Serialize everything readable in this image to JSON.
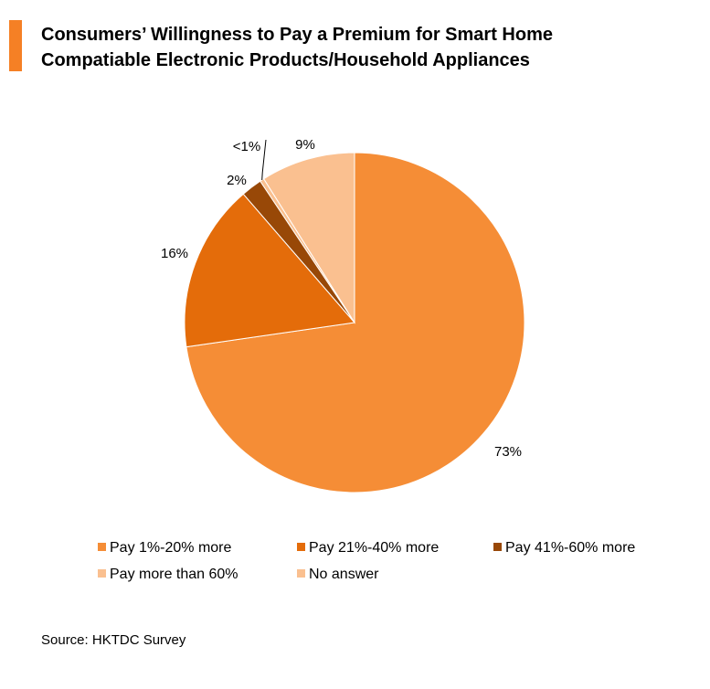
{
  "title": {
    "line1": "Consumers’ Willingness to Pay a Premium for Smart Home",
    "line2": "Compatiable Electronic Products/Household Appliances",
    "accent_color": "#F58025"
  },
  "chart_data": {
    "type": "pie",
    "title": "Consumers’ Willingness to Pay a Premium for Smart Home Compatiable Electronic Products/Household Appliances",
    "start_angle_deg": 0,
    "direction": "clockwise",
    "slices": [
      {
        "name": "Pay 1%-20% more",
        "value": 73,
        "label": "73%",
        "color": "#F58D36"
      },
      {
        "name": "Pay 21%-40% more",
        "value": 16,
        "label": "16%",
        "color": "#E46C0A"
      },
      {
        "name": "Pay 41%-60% more",
        "value": 2,
        "label": "2%",
        "color": "#984807"
      },
      {
        "name": "Pay more than 60%",
        "value": 0.4,
        "label": "<1%",
        "color": "#FAC090"
      },
      {
        "name": "No answer",
        "value": 9,
        "label": "9%",
        "color": "#FAC090"
      }
    ],
    "legend_position": "bottom"
  },
  "legend": [
    {
      "label": "Pay 1%-20% more",
      "color": "#F58D36"
    },
    {
      "label": "Pay 21%-40% more",
      "color": "#E46C0A"
    },
    {
      "label": "Pay 41%-60% more",
      "color": "#984807"
    },
    {
      "label": "Pay more than 60%",
      "color": "#FAC090"
    },
    {
      "label": "No answer",
      "color": "#FAC090"
    }
  ],
  "source": "Source: HKTDC Survey"
}
